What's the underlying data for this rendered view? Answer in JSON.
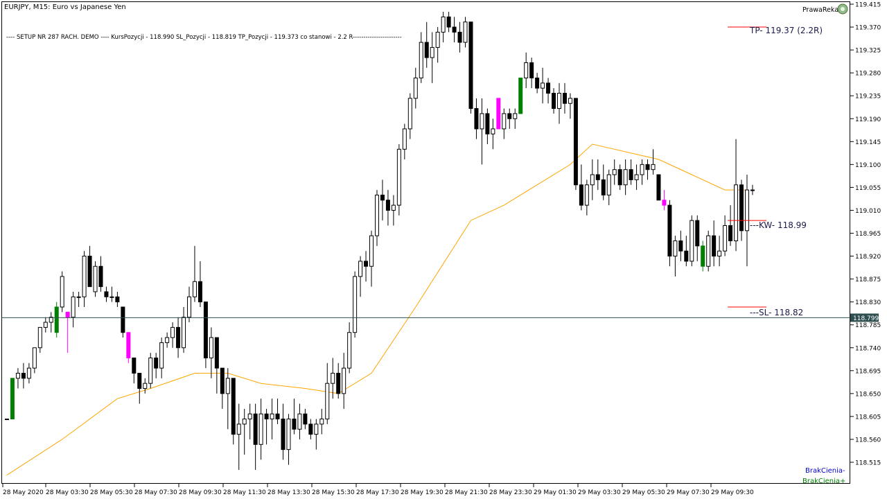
{
  "window": {
    "title": "EURJPY, M15:  Euro vs Japanese Yen",
    "brand": "PrawaReka"
  },
  "setup_line": "---- SETUP NR 287 RACH. DEMO ---- KursPozycji - 118.990 SL_Pozycji - 118.819  TP_Pozycji - 119.373 co stanowi - 2.2 R-----------------------",
  "labels": {
    "tp": "TP- 119.37 (2.2R)",
    "kw": "---KW- 118.99",
    "sl": "---SL- 118.82",
    "current_price": "118.799",
    "brak_minus": "BrakCienia-",
    "brak_plus": "BrakCienia+"
  },
  "colors": {
    "ema": "#FFA500",
    "bull_highlight": "#008000",
    "bear_highlight": "#FF00FF",
    "levels": "#FF0000",
    "price_line": "#2F4F4F",
    "brak_minus": "#0000CD",
    "brak_plus": "#008000"
  },
  "chart_data": {
    "type": "candlestick",
    "symbol": "EURJPY",
    "timeframe": "M15",
    "y_ticks": [
      "119.415",
      "119.370",
      "119.325",
      "119.280",
      "119.235",
      "119.190",
      "119.145",
      "119.100",
      "119.055",
      "119.010",
      "118.965",
      "118.920",
      "118.875",
      "118.830",
      "118.785",
      "118.740",
      "118.695",
      "118.650",
      "118.605",
      "118.560",
      "118.515"
    ],
    "ylim": [
      118.495,
      119.42
    ],
    "x_labels": [
      "28 May 2020",
      "28 May 03:30",
      "28 May 05:30",
      "28 May 07:30",
      "28 May 09:30",
      "28 May 11:30",
      "28 May 13:30",
      "28 May 15:30",
      "28 May 17:30",
      "28 May 19:30",
      "28 May 21:30",
      "28 May 23:30",
      "29 May 01:30",
      "29 May 03:30",
      "29 May 05:30",
      "29 May 07:30",
      "29 May 09:30"
    ],
    "levels": {
      "tp": 119.37,
      "entry": 118.99,
      "sl": 118.82,
      "current": 118.799
    },
    "bull_highlight_idx": [
      1,
      9,
      93,
      126
    ],
    "bear_highlight_idx": [
      11,
      22,
      89,
      119
    ],
    "candles": [
      [
        118.6,
        118.6,
        118.6,
        118.6
      ],
      [
        118.6,
        118.68,
        118.6,
        118.68
      ],
      [
        118.68,
        118.7,
        118.66,
        118.69
      ],
      [
        118.69,
        118.71,
        118.66,
        118.68
      ],
      [
        118.68,
        118.71,
        118.67,
        118.7
      ],
      [
        118.7,
        118.74,
        118.69,
        118.74
      ],
      [
        118.74,
        118.78,
        118.73,
        118.78
      ],
      [
        118.78,
        118.8,
        118.77,
        118.79
      ],
      [
        118.79,
        118.81,
        118.77,
        118.8
      ],
      [
        118.77,
        118.83,
        118.76,
        118.82
      ],
      [
        118.82,
        118.89,
        118.81,
        118.88
      ],
      [
        118.81,
        118.81,
        118.73,
        118.8
      ],
      [
        118.8,
        118.85,
        118.78,
        118.84
      ],
      [
        118.84,
        118.85,
        118.82,
        118.84
      ],
      [
        118.84,
        118.93,
        118.82,
        118.92
      ],
      [
        118.92,
        118.94,
        118.86,
        118.86
      ],
      [
        118.85,
        118.91,
        118.84,
        118.9
      ],
      [
        118.9,
        118.92,
        118.85,
        118.86
      ],
      [
        118.85,
        118.86,
        118.83,
        118.84
      ],
      [
        118.84,
        118.86,
        118.83,
        118.84
      ],
      [
        118.84,
        118.85,
        118.82,
        118.83
      ],
      [
        118.82,
        118.82,
        118.76,
        118.77
      ],
      [
        118.77,
        118.77,
        118.71,
        118.72
      ],
      [
        118.72,
        118.72,
        118.67,
        118.69
      ],
      [
        118.69,
        118.69,
        118.63,
        118.66
      ],
      [
        118.66,
        118.68,
        118.65,
        118.67
      ],
      [
        118.67,
        118.73,
        118.66,
        118.72
      ],
      [
        118.72,
        118.73,
        118.68,
        118.7
      ],
      [
        118.7,
        118.76,
        118.68,
        118.75
      ],
      [
        118.75,
        118.77,
        118.74,
        118.76
      ],
      [
        118.76,
        118.79,
        118.74,
        118.78
      ],
      [
        118.78,
        118.8,
        118.72,
        118.74
      ],
      [
        118.74,
        118.82,
        118.73,
        118.8
      ],
      [
        118.8,
        118.86,
        118.79,
        118.84
      ],
      [
        118.84,
        118.94,
        118.83,
        118.87
      ],
      [
        118.87,
        118.91,
        118.82,
        118.83
      ],
      [
        118.83,
        118.83,
        118.7,
        118.72
      ],
      [
        118.72,
        118.78,
        118.68,
        118.76
      ],
      [
        118.76,
        118.76,
        118.65,
        118.7
      ],
      [
        118.7,
        118.7,
        118.62,
        118.65
      ],
      [
        118.65,
        118.7,
        118.58,
        118.68
      ],
      [
        118.68,
        118.68,
        118.55,
        118.57
      ],
      [
        118.57,
        118.63,
        118.5,
        118.59
      ],
      [
        118.59,
        118.62,
        118.53,
        118.6
      ],
      [
        118.6,
        118.63,
        118.56,
        118.61
      ],
      [
        118.61,
        118.63,
        118.5,
        118.55
      ],
      [
        118.55,
        118.64,
        118.52,
        118.61
      ],
      [
        118.61,
        118.62,
        118.55,
        118.6
      ],
      [
        118.6,
        118.64,
        118.56,
        118.61
      ],
      [
        118.61,
        118.64,
        118.59,
        118.6
      ],
      [
        118.6,
        118.63,
        118.52,
        118.54
      ],
      [
        118.54,
        118.61,
        118.51,
        118.6
      ],
      [
        118.6,
        118.64,
        118.57,
        118.58
      ],
      [
        118.58,
        118.63,
        118.56,
        118.61
      ],
      [
        118.61,
        118.62,
        118.58,
        118.59
      ],
      [
        118.59,
        118.6,
        118.56,
        118.57
      ],
      [
        118.57,
        118.6,
        118.54,
        118.59
      ],
      [
        118.59,
        118.62,
        118.57,
        118.6
      ],
      [
        118.6,
        118.71,
        118.59,
        118.67
      ],
      [
        118.67,
        118.72,
        118.64,
        118.69
      ],
      [
        118.69,
        118.71,
        118.64,
        118.65
      ],
      [
        118.65,
        118.73,
        118.62,
        118.7
      ],
      [
        118.7,
        118.79,
        118.69,
        118.77
      ],
      [
        118.77,
        118.89,
        118.76,
        118.88
      ],
      [
        118.88,
        118.92,
        118.84,
        118.91
      ],
      [
        118.91,
        118.93,
        118.87,
        118.9
      ],
      [
        118.9,
        118.97,
        118.86,
        118.96
      ],
      [
        118.96,
        119.05,
        118.94,
        119.04
      ],
      [
        119.04,
        119.07,
        118.99,
        119.03
      ],
      [
        119.03,
        119.05,
        118.98,
        119.01
      ],
      [
        119.01,
        119.04,
        118.98,
        119.02
      ],
      [
        119.02,
        119.14,
        119.0,
        119.13
      ],
      [
        119.13,
        119.18,
        119.11,
        119.17
      ],
      [
        119.17,
        119.24,
        119.15,
        119.23
      ],
      [
        119.23,
        119.29,
        119.21,
        119.27
      ],
      [
        119.27,
        119.36,
        119.26,
        119.34
      ],
      [
        119.34,
        119.38,
        119.29,
        119.31
      ],
      [
        119.31,
        119.36,
        119.26,
        119.33
      ],
      [
        119.33,
        119.37,
        119.3,
        119.36
      ],
      [
        119.36,
        119.4,
        119.34,
        119.39
      ],
      [
        119.39,
        119.4,
        119.36,
        119.37
      ],
      [
        119.37,
        119.39,
        119.34,
        119.36
      ],
      [
        119.36,
        119.38,
        119.32,
        119.34
      ],
      [
        119.34,
        119.39,
        119.33,
        119.38
      ],
      [
        119.38,
        119.38,
        119.2,
        119.21
      ],
      [
        119.21,
        119.23,
        119.15,
        119.17
      ],
      [
        119.17,
        119.23,
        119.1,
        119.2
      ],
      [
        119.2,
        119.21,
        119.14,
        119.16
      ],
      [
        119.16,
        119.19,
        119.13,
        119.17
      ],
      [
        119.23,
        119.23,
        119.17,
        119.17
      ],
      [
        119.17,
        119.21,
        119.15,
        119.2
      ],
      [
        119.2,
        119.21,
        119.17,
        119.19
      ],
      [
        119.19,
        119.21,
        119.17,
        119.2
      ],
      [
        119.2,
        119.27,
        119.2,
        119.27
      ],
      [
        119.27,
        119.32,
        119.25,
        119.3
      ],
      [
        119.3,
        119.31,
        119.25,
        119.27
      ],
      [
        119.27,
        119.28,
        119.24,
        119.25
      ],
      [
        119.25,
        119.29,
        119.22,
        119.26
      ],
      [
        119.26,
        119.27,
        119.22,
        119.24
      ],
      [
        119.24,
        119.25,
        119.2,
        119.21
      ],
      [
        119.21,
        119.26,
        119.18,
        119.24
      ],
      [
        119.24,
        119.26,
        119.2,
        119.22
      ],
      [
        119.22,
        119.24,
        119.19,
        119.23
      ],
      [
        119.23,
        119.23,
        119.05,
        119.06
      ],
      [
        119.06,
        119.1,
        119.01,
        119.02
      ],
      [
        119.02,
        119.07,
        119.0,
        119.06
      ],
      [
        119.06,
        119.11,
        119.03,
        119.08
      ],
      [
        119.08,
        119.11,
        119.05,
        119.07
      ],
      [
        119.07,
        119.1,
        119.03,
        119.04
      ],
      [
        119.04,
        119.09,
        119.02,
        119.08
      ],
      [
        119.08,
        119.11,
        119.06,
        119.09
      ],
      [
        119.09,
        119.1,
        119.05,
        119.06
      ],
      [
        119.06,
        119.11,
        119.04,
        119.09
      ],
      [
        119.09,
        119.11,
        119.06,
        119.07
      ],
      [
        119.07,
        119.1,
        119.05,
        119.08
      ],
      [
        119.08,
        119.11,
        119.06,
        119.1
      ],
      [
        119.1,
        119.11,
        119.07,
        119.09
      ],
      [
        119.09,
        119.13,
        119.08,
        119.1
      ],
      [
        119.08,
        119.08,
        119.03,
        119.03
      ],
      [
        119.03,
        119.05,
        119.01,
        119.02
      ],
      [
        119.02,
        119.03,
        118.9,
        118.92
      ],
      [
        118.92,
        118.96,
        118.88,
        118.95
      ],
      [
        118.95,
        118.97,
        118.91,
        118.93
      ],
      [
        118.93,
        118.96,
        118.9,
        118.91
      ],
      [
        118.91,
        119.0,
        118.9,
        118.99
      ],
      [
        118.99,
        119.0,
        118.91,
        118.94
      ],
      [
        118.94,
        118.95,
        118.89,
        118.9
      ],
      [
        118.9,
        118.97,
        118.89,
        118.96
      ],
      [
        118.96,
        118.99,
        118.9,
        118.92
      ],
      [
        118.92,
        118.96,
        118.9,
        118.93
      ],
      [
        118.93,
        119.0,
        118.92,
        118.98
      ],
      [
        118.98,
        119.02,
        118.94,
        118.95
      ],
      [
        118.95,
        119.15,
        118.93,
        119.06
      ],
      [
        119.06,
        119.07,
        118.95,
        118.97
      ],
      [
        118.97,
        119.08,
        118.9,
        119.05
      ],
      [
        119.05,
        119.06,
        119.04,
        119.05
      ]
    ],
    "ema": [
      [
        0,
        118.49
      ],
      [
        10,
        118.56
      ],
      [
        20,
        118.64
      ],
      [
        26,
        118.66
      ],
      [
        34,
        118.69
      ],
      [
        40,
        118.69
      ],
      [
        46,
        118.67
      ],
      [
        54,
        118.66
      ],
      [
        60,
        118.65
      ],
      [
        66,
        118.69
      ],
      [
        74,
        118.82
      ],
      [
        84,
        118.99
      ],
      [
        90,
        119.02
      ],
      [
        96,
        119.06
      ],
      [
        102,
        119.1
      ],
      [
        106,
        119.14
      ],
      [
        110,
        119.13
      ],
      [
        118,
        119.11
      ],
      [
        124,
        119.08
      ],
      [
        130,
        119.05
      ],
      [
        134,
        119.05
      ]
    ]
  }
}
